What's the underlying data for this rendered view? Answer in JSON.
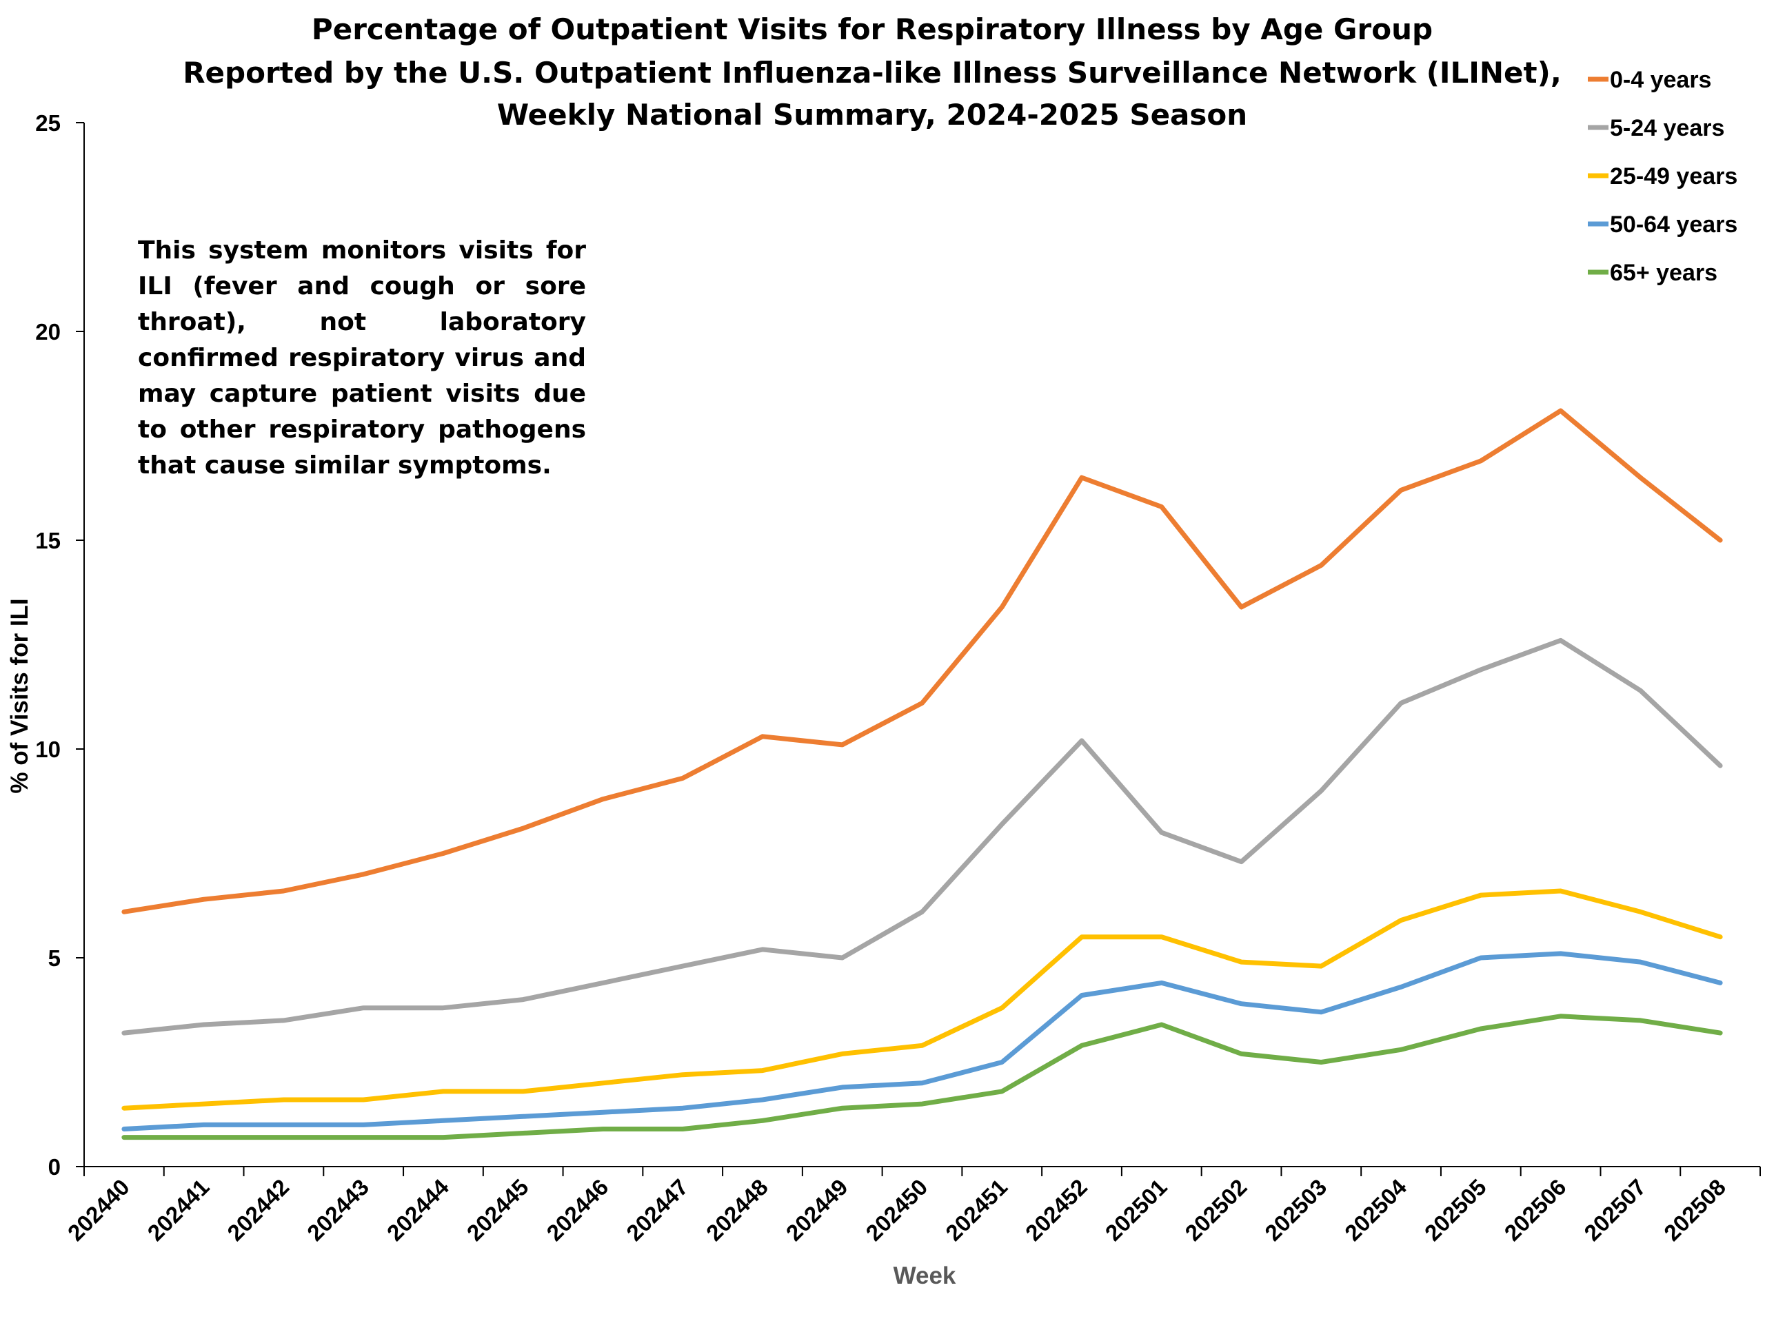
{
  "chart_data": {
    "type": "line",
    "title_lines": [
      "Percentage of Outpatient Visits for Respiratory Illness by Age Group",
      "Reported by the U.S. Outpatient Influenza-like Illness Surveillance Network (ILINet),",
      "Weekly National Summary, 2024-2025 Season"
    ],
    "xlabel": "Week",
    "ylabel": "% of Visits for ILI",
    "ylim": [
      0,
      25
    ],
    "yticks": [
      0,
      5,
      10,
      15,
      20,
      25
    ],
    "x": [
      "202440",
      "202441",
      "202442",
      "202443",
      "202444",
      "202445",
      "202446",
      "202447",
      "202448",
      "202449",
      "202450",
      "202451",
      "202452",
      "202501",
      "202502",
      "202503",
      "202504",
      "202505",
      "202506",
      "202507",
      "202508"
    ],
    "legend_position": "top-right",
    "grid": false,
    "series": [
      {
        "name": "0-4 years",
        "color": "#ED7D31",
        "values": [
          6.1,
          6.4,
          6.6,
          7.0,
          7.5,
          8.1,
          8.8,
          9.3,
          10.3,
          10.1,
          11.1,
          13.4,
          16.5,
          15.8,
          13.4,
          14.4,
          16.2,
          16.9,
          18.1,
          16.5,
          15.0
        ]
      },
      {
        "name": "5-24 years",
        "color": "#A5A5A5",
        "values": [
          3.2,
          3.4,
          3.5,
          3.8,
          3.8,
          4.0,
          4.4,
          4.8,
          5.2,
          5.0,
          6.1,
          8.2,
          10.2,
          8.0,
          7.3,
          9.0,
          11.1,
          11.9,
          12.6,
          11.4,
          9.6
        ]
      },
      {
        "name": "25-49 years",
        "color": "#FFC000",
        "values": [
          1.4,
          1.5,
          1.6,
          1.6,
          1.8,
          1.8,
          2.0,
          2.2,
          2.3,
          2.7,
          2.9,
          3.8,
          5.5,
          5.5,
          4.9,
          4.8,
          5.9,
          6.5,
          6.6,
          6.1,
          5.5
        ]
      },
      {
        "name": "50-64 years",
        "color": "#5B9BD5",
        "values": [
          0.9,
          1.0,
          1.0,
          1.0,
          1.1,
          1.2,
          1.3,
          1.4,
          1.6,
          1.9,
          2.0,
          2.5,
          4.1,
          4.4,
          3.9,
          3.7,
          4.3,
          5.0,
          5.1,
          4.9,
          4.4
        ]
      },
      {
        "name": "65+ years",
        "color": "#70AD47",
        "values": [
          0.7,
          0.7,
          0.7,
          0.7,
          0.7,
          0.8,
          0.9,
          0.9,
          1.1,
          1.4,
          1.5,
          1.8,
          2.9,
          3.4,
          2.7,
          2.5,
          2.8,
          3.3,
          3.6,
          3.5,
          3.2
        ]
      }
    ],
    "annotation": "This system monitors visits for ILI (fever and cough or sore throat), not laboratory confirmed respiratory virus and may capture patient visits due to other respiratory pathogens that cause similar symptoms.",
    "xlabel_color": "#595959",
    "axis_color": "#000000"
  }
}
